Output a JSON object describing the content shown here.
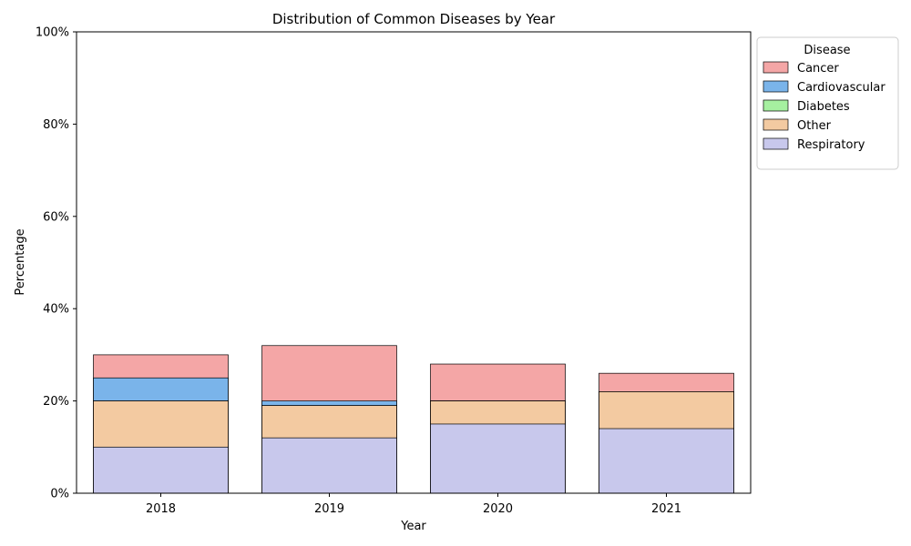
{
  "chart_data": {
    "type": "bar",
    "stacked": true,
    "title": "Distribution of Common Diseases by Year",
    "xlabel": "Year",
    "ylabel": "Percentage",
    "categories": [
      "2018",
      "2019",
      "2020",
      "2021"
    ],
    "ylim": [
      0,
      100
    ],
    "yticks": [
      0,
      20,
      40,
      60,
      80,
      100
    ],
    "ytick_labels": [
      "0%",
      "20%",
      "40%",
      "60%",
      "80%",
      "100%"
    ],
    "grid": false,
    "legend": {
      "title": "Disease",
      "placement": "outside-top-right"
    },
    "series": [
      {
        "name": "Cancer",
        "color": "#f4a6a6",
        "values": [
          30,
          32,
          28,
          26
        ]
      },
      {
        "name": "Cardiovascular",
        "color": "#7ab4ea",
        "values": [
          25,
          20,
          20,
          22
        ]
      },
      {
        "name": "Diabetes",
        "color": "#a6f0a0",
        "values": [
          20,
          19,
          20,
          22
        ]
      },
      {
        "name": "Other",
        "color": "#f3caa1",
        "values": [
          20,
          19,
          20,
          22
        ]
      },
      {
        "name": "Respiratory",
        "color": "#c8c8ec",
        "values": [
          10,
          12,
          15,
          14
        ]
      }
    ]
  }
}
